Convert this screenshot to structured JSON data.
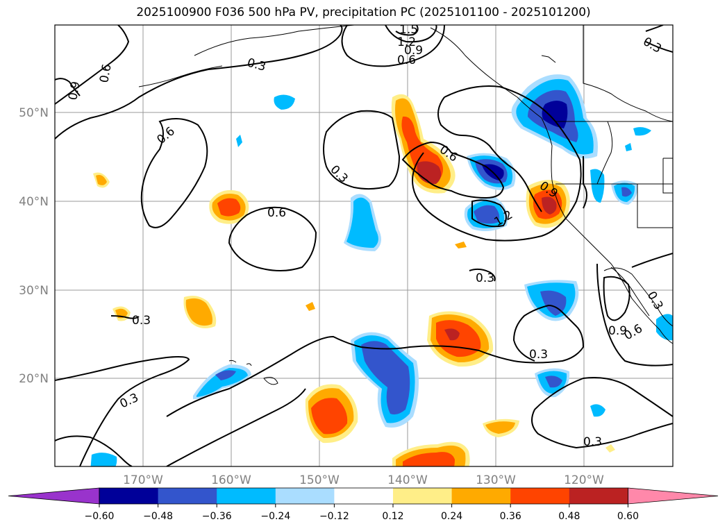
{
  "title": "2025100900 F036 500 hPa PV, precipitation PC (2025101100 - 2025101200)",
  "map": {
    "lat_labels": [
      "50°N",
      "40°N",
      "30°N",
      "20°N"
    ],
    "lon_labels": [
      "170°W",
      "160°W",
      "150°W",
      "140°W",
      "130°W",
      "120°W"
    ],
    "contour_labels": [
      "0.3",
      "0.6",
      "0.9",
      "1.2",
      "1.5"
    ]
  },
  "colorbar": {
    "ticks": [
      "−0.60",
      "−0.48",
      "−0.36",
      "−0.24",
      "−0.12",
      "0.12",
      "0.24",
      "0.36",
      "0.48",
      "0.60"
    ],
    "colors": [
      "#9933cc",
      "#000099",
      "#3355cc",
      "#00bbff",
      "#aaddff",
      "#ffffff",
      "#ffee88",
      "#ffaa00",
      "#ff4400",
      "#bb2222",
      "#ff88aa"
    ]
  }
}
